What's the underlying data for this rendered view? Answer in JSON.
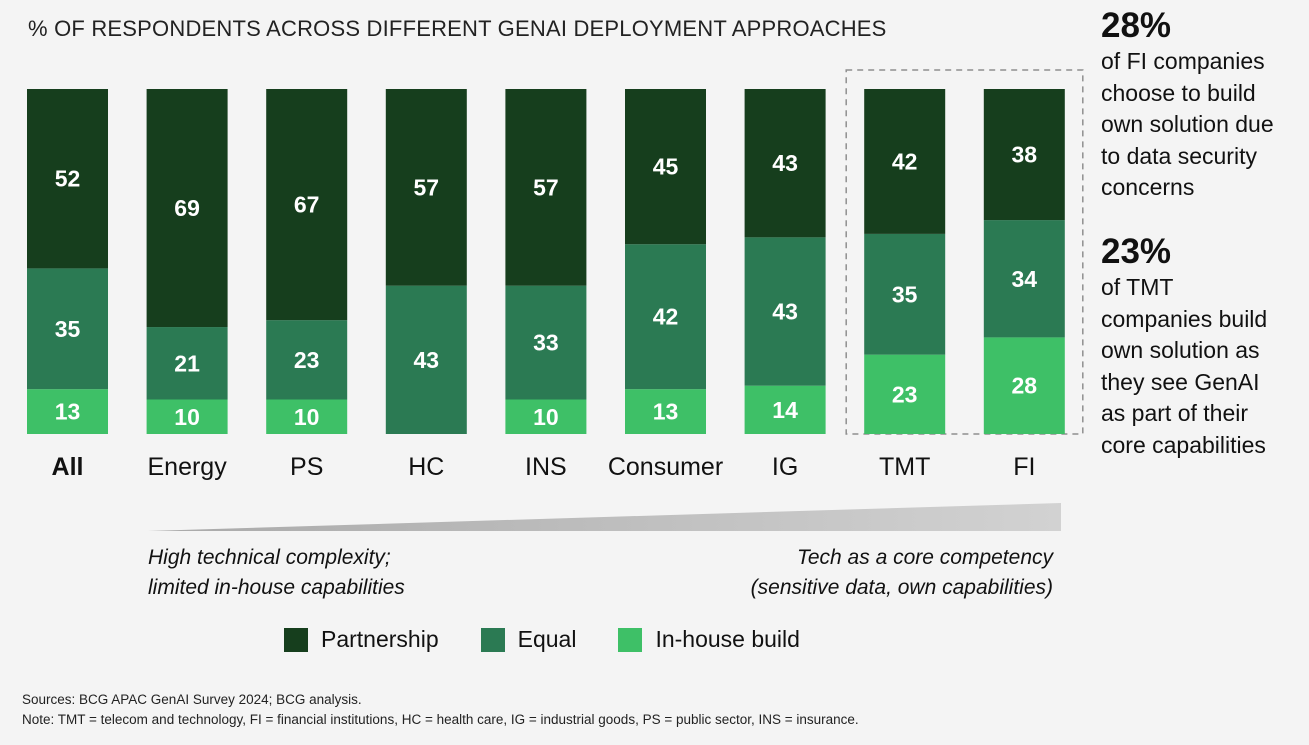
{
  "title": "% OF RESPONDENTS ACROSS DIFFERENT GENAI DEPLOYMENT APPROACHES",
  "colors": {
    "partnership": "#163e1d",
    "equal": "#2b7a53",
    "inhouse": "#3ec067",
    "wedge": "#b3b3b3",
    "highlight_border": "#8f8f8f"
  },
  "chart_data": {
    "type": "bar",
    "stacked": true,
    "categories": [
      "All",
      "Energy",
      "PS",
      "HC",
      "INS",
      "Consumer",
      "IG",
      "TMT",
      "FI"
    ],
    "bold_categories": [
      "All"
    ],
    "highlighted_categories": [
      "TMT",
      "FI"
    ],
    "series": [
      {
        "name": "In-house build",
        "key": "inhouse",
        "values": [
          13,
          10,
          10,
          null,
          10,
          13,
          14,
          23,
          28
        ]
      },
      {
        "name": "Equal",
        "key": "equal",
        "values": [
          35,
          21,
          23,
          43,
          33,
          42,
          43,
          35,
          34
        ]
      },
      {
        "name": "Partnership",
        "key": "partnership",
        "values": [
          52,
          69,
          67,
          57,
          57,
          45,
          43,
          42,
          38
        ]
      }
    ],
    "ylim": [
      0,
      100
    ],
    "grid": false,
    "legend_position": "bottom"
  },
  "legend": [
    {
      "label": "Partnership",
      "key": "partnership"
    },
    {
      "label": "Equal",
      "key": "equal"
    },
    {
      "label": "In-house build",
      "key": "inhouse"
    }
  ],
  "scale": {
    "left_text": [
      "High technical complexity;",
      "limited in-house capabilities"
    ],
    "right_text": [
      "Tech as a core competency",
      "(sensitive data, own capabilities)"
    ]
  },
  "callouts": [
    {
      "value": "28%",
      "text": "of FI companies\nchoose to build\nown solution due\nto data security\nconcerns"
    },
    {
      "value": "23%",
      "text": "of TMT\ncompanies build\nown solution as\nthey see GenAI\nas part of their\ncore capabilities"
    }
  ],
  "footnotes": {
    "sources": "Sources: BCG APAC GenAI Survey 2024; BCG analysis.",
    "note": "Note: TMT = telecom and technology, FI = financial institutions, HC = health care, IG = industrial goods, PS = public sector, INS = insurance."
  }
}
